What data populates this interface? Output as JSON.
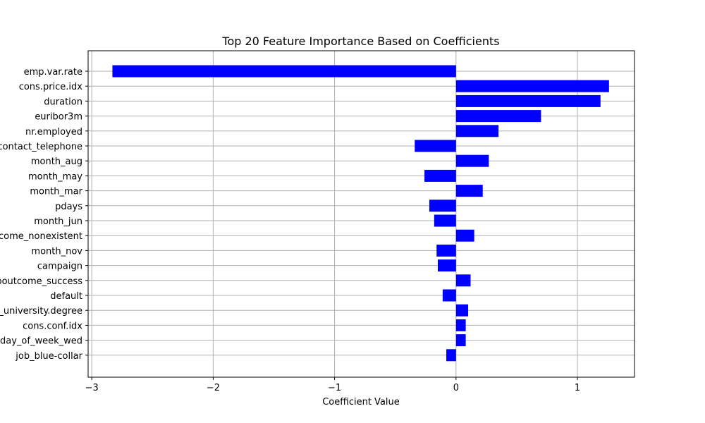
{
  "chart_data": {
    "type": "bar",
    "orientation": "horizontal",
    "title": "Top 20 Feature Importance Based on Coefficients",
    "xlabel": "Coefficient Value",
    "ylabel": "",
    "xlim": [
      -3.03,
      1.47
    ],
    "xticks": [
      -3,
      -2,
      -1,
      0,
      1
    ],
    "xtick_labels": [
      "−3",
      "−2",
      "−1",
      "0",
      "1"
    ],
    "grid": true,
    "bar_color": "#0000ff",
    "categories": [
      "emp.var.rate",
      "cons.price.idx",
      "duration",
      "euribor3m",
      "nr.employed",
      "contact_telephone",
      "month_aug",
      "month_may",
      "month_mar",
      "pdays",
      "month_jun",
      "poutcome_nonexistent",
      "month_nov",
      "campaign",
      "poutcome_success",
      "default",
      "education_university.degree",
      "cons.conf.idx",
      "day_of_week_wed",
      "job_blue-collar"
    ],
    "values": [
      -2.83,
      1.26,
      1.19,
      0.7,
      0.35,
      -0.34,
      0.27,
      -0.26,
      0.22,
      -0.22,
      -0.18,
      0.15,
      -0.16,
      -0.15,
      0.12,
      -0.11,
      0.1,
      0.08,
      0.08,
      -0.08
    ]
  }
}
